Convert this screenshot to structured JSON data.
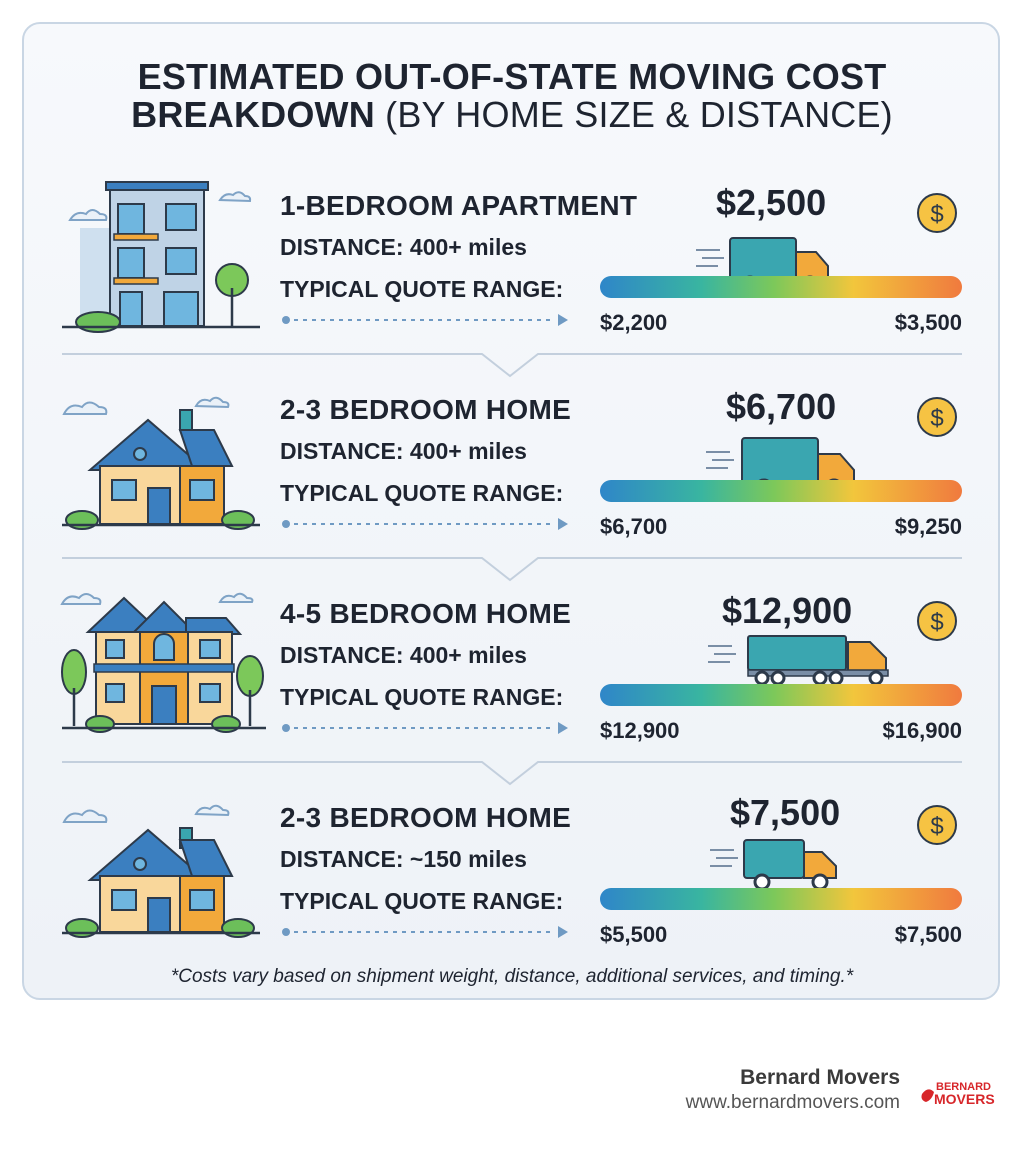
{
  "title": {
    "line1": "ESTIMATED OUT-OF-STATE MOVING COST",
    "line2_bold": "BREAKDOWN",
    "line2_rest": "(BY HOME SIZE & DISTANCE)"
  },
  "rows": [
    {
      "home": "1-BEDROOM APARTMENT",
      "distance": "DISTANCE: 400+ miles",
      "range_label": "TYPICAL QUOTE RANGE:",
      "price": "$2,500",
      "low": "$2,200",
      "high": "$3,500",
      "illustration": "apartment-building",
      "truck": "box-truck"
    },
    {
      "home": "2-3 BEDROOM HOME",
      "distance": "DISTANCE: 400+ miles",
      "range_label": "TYPICAL QUOTE RANGE:",
      "price": "$6,700",
      "low": "$6,700",
      "high": "$9,250",
      "illustration": "house",
      "truck": "box-truck"
    },
    {
      "home": "4-5 BEDROOM HOME",
      "distance": "DISTANCE: 400+ miles",
      "range_label": "TYPICAL QUOTE RANGE:",
      "price": "$12,900",
      "low": "$12,900",
      "high": "$16,900",
      "illustration": "large-house",
      "truck": "semi-truck"
    },
    {
      "home": "2-3 BEDROOM HOME",
      "distance": "DISTANCE: ~150 miles",
      "range_label": "TYPICAL QUOTE RANGE:",
      "price": "$7,500",
      "low": "$5,500",
      "high": "$7,500",
      "illustration": "house",
      "truck": "box-truck"
    }
  ],
  "footnote": "*Costs vary based on shipment weight, distance, additional services, and timing.*",
  "footer": {
    "brand": "Bernard Movers",
    "url": "www.bernardmovers.com",
    "logo_text_1": "BERNARD",
    "logo_text_2": "MOVERS"
  },
  "colors": {
    "text": "#1e2430",
    "coin": "#f6c343",
    "truck_body": "#3aa6b0",
    "truck_cab": "#f2a93b",
    "logo_red": "#d7262a"
  },
  "icons": [
    "apartment-building-icon",
    "house-icon",
    "large-house-icon",
    "truck-icon",
    "dollar-coin-icon",
    "dotted-arrow-icon"
  ]
}
